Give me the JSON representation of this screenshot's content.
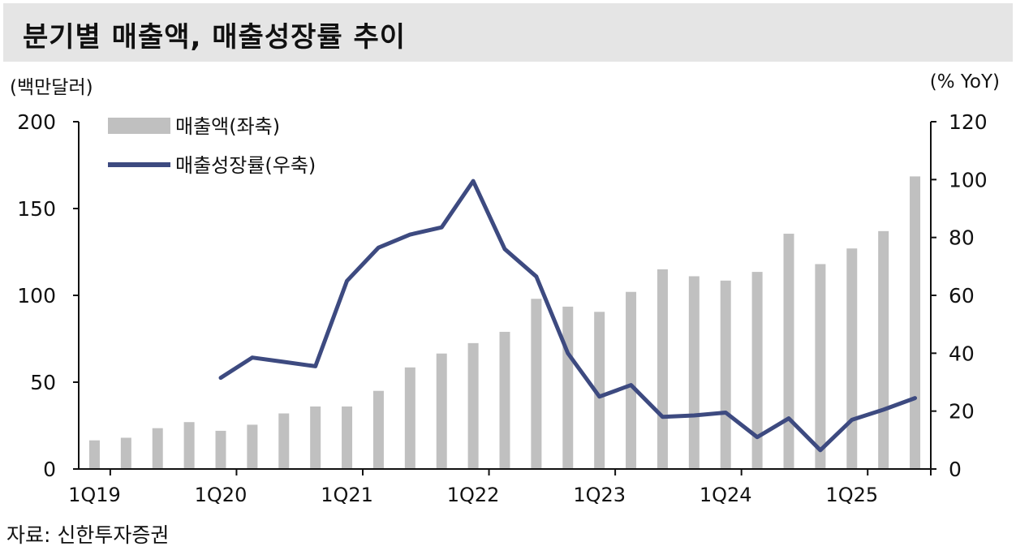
{
  "title": "분기별 매출액, 매출성장률 추이",
  "left_axis_unit": "(백만달러)",
  "right_axis_unit": "(% YoY)",
  "source": "자료: 신한투자증권",
  "colors": {
    "bar": "#c0c0c0",
    "line": "#3d4a80",
    "title_bg": "#e5e5e5"
  },
  "chart_data": {
    "type": "bar",
    "title": "분기별 매출액, 매출성장률 추이",
    "categories": [
      "1Q19",
      "2Q19",
      "3Q19",
      "4Q19",
      "1Q20",
      "2Q20",
      "3Q20",
      "4Q20",
      "1Q21",
      "2Q21",
      "3Q21",
      "4Q21",
      "1Q22",
      "2Q22",
      "3Q22",
      "4Q22",
      "1Q23",
      "2Q23",
      "3Q23",
      "4Q23",
      "1Q24",
      "2Q24",
      "3Q24",
      "4Q24",
      "1Q25",
      "2Q25",
      "3Q25"
    ],
    "x_tick_labels": [
      "1Q19",
      "1Q20",
      "1Q21",
      "1Q22",
      "1Q23",
      "1Q24",
      "1Q25"
    ],
    "legend_position": "top-left",
    "series": [
      {
        "name": "매출액(좌축)",
        "type": "bar",
        "axis": "left",
        "values": [
          16.5,
          18,
          23.5,
          27,
          22,
          25.5,
          32,
          36,
          36,
          45,
          58.5,
          66.5,
          72.5,
          79,
          98,
          93.5,
          90.5,
          102,
          115,
          111,
          108.5,
          113.5,
          135.5,
          118,
          127,
          137,
          168.5
        ]
      },
      {
        "name": "매출성장률(우축)",
        "type": "line",
        "axis": "right",
        "values": [
          null,
          null,
          null,
          null,
          31.5,
          38.5,
          37,
          35.5,
          65,
          76.5,
          81,
          83.5,
          99.5,
          76,
          66.5,
          40,
          25,
          29,
          18,
          18.5,
          19.5,
          11,
          17.5,
          6.5,
          17,
          20.5,
          24.5
        ]
      }
    ],
    "y_left": {
      "ylim": [
        0,
        200
      ],
      "ticks": [
        "0",
        "50",
        "100",
        "150",
        "200"
      ]
    },
    "y_right": {
      "ylim": [
        0,
        120
      ],
      "ticks": [
        "0",
        "20",
        "40",
        "60",
        "80",
        "100",
        "120"
      ]
    }
  }
}
